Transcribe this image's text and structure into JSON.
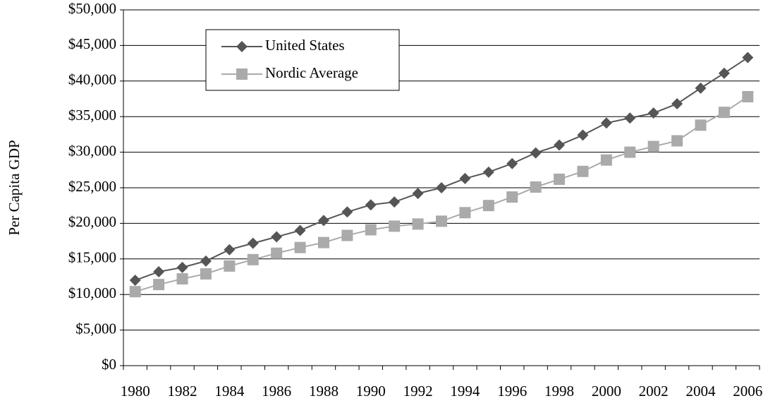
{
  "chart_data": {
    "type": "line",
    "y_label": "Per Capita GDP",
    "categories": [
      "1980",
      null,
      "1982",
      null,
      "1984",
      null,
      "1986",
      null,
      "1988",
      null,
      "1990",
      null,
      "1992",
      null,
      "1994",
      null,
      "1996",
      null,
      "1998",
      null,
      "2000",
      null,
      "2002",
      null,
      "2004",
      null,
      "2006"
    ],
    "series": [
      {
        "name": "United States",
        "color": "#555555",
        "marker": "diamond",
        "values": [
          12000,
          13200,
          13800,
          14700,
          16300,
          17200,
          18100,
          19000,
          20400,
          21600,
          22600,
          23000,
          24200,
          25000,
          26300,
          27200,
          28400,
          29900,
          31000,
          32400,
          34100,
          34800,
          35500,
          36800,
          39000,
          41100,
          43300
        ]
      },
      {
        "name": "Nordic Average",
        "color": "#aaaaaa",
        "marker": "square",
        "values": [
          10400,
          11400,
          12200,
          12900,
          14000,
          14900,
          15800,
          16600,
          17300,
          18300,
          19100,
          19600,
          19900,
          20300,
          21500,
          22500,
          23700,
          25100,
          26200,
          27300,
          28900,
          30000,
          30800,
          31600,
          33800,
          35600,
          37800
        ]
      }
    ],
    "ylim": [
      0,
      50000
    ],
    "yticks": [
      {
        "value": 0,
        "label": "$0"
      },
      {
        "value": 5000,
        "label": "$5,000"
      },
      {
        "value": 10000,
        "label": "$10,000"
      },
      {
        "value": 15000,
        "label": "$15,000"
      },
      {
        "value": 20000,
        "label": "$20,000"
      },
      {
        "value": 25000,
        "label": "$25,000"
      },
      {
        "value": 30000,
        "label": "$30,000"
      },
      {
        "value": 35000,
        "label": "$35,000"
      },
      {
        "value": 40000,
        "label": "$40,000"
      },
      {
        "value": 45000,
        "label": "$45,000"
      },
      {
        "value": 50000,
        "label": "$50,000"
      }
    ],
    "grid": true,
    "legend": "upper left"
  }
}
